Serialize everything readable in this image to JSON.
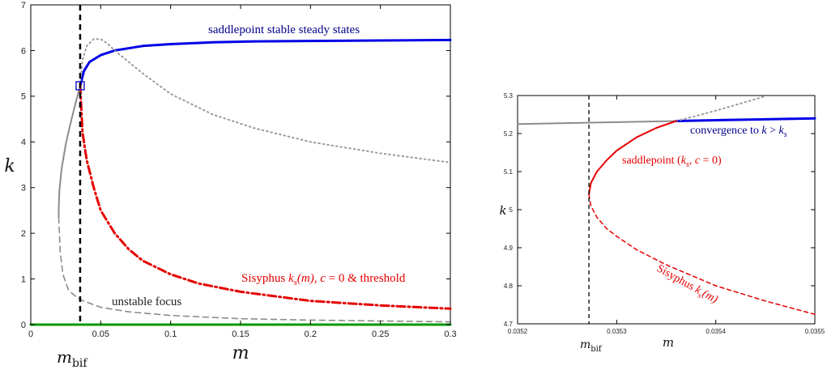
{
  "chart_data": [
    {
      "type": "line",
      "xlabel": "m",
      "ylabel": "k",
      "xlim": [
        0,
        0.3
      ],
      "ylim": [
        0,
        7
      ],
      "x_ticks": [
        "0",
        "0.05",
        "0.1",
        "0.15",
        "0.2",
        "0.25",
        "0.3"
      ],
      "y_ticks": [
        "0",
        "1",
        "2",
        "3",
        "4",
        "5",
        "6",
        "7"
      ],
      "marker_label": "m_bif",
      "marker_base": "m",
      "marker_sub": "bif",
      "m_bif": 0.0353,
      "annotations": {
        "stable": "saddlepoint stable steady states",
        "sisyphus_prefix": "Sisyphus ",
        "sisyphus_k": "k",
        "sisyphus_s": "s",
        "sisyphus_m": "(m), ",
        "sisyphus_c": "c",
        "sisyphus_suffix": " = 0 & threshold",
        "unstable": "unstable focus"
      },
      "colors": {
        "stable": "#0000e6",
        "sisyphus": "#e60000",
        "gray": "#8c8c8c",
        "zero": "#009900"
      },
      "series": [
        {
          "style": "solid-blue",
          "x": [
            0.0353,
            0.038,
            0.042,
            0.05,
            0.06,
            0.08,
            0.1,
            0.13,
            0.16,
            0.2,
            0.25,
            0.3
          ],
          "y": [
            5.23,
            5.55,
            5.75,
            5.9,
            6.0,
            6.1,
            6.14,
            6.18,
            6.2,
            6.21,
            6.22,
            6.23
          ]
        },
        {
          "style": "dashdot-red",
          "x": [
            0.0353,
            0.037,
            0.04,
            0.045,
            0.05,
            0.06,
            0.07,
            0.08,
            0.1,
            0.12,
            0.15,
            0.2,
            0.25,
            0.3
          ],
          "y": [
            5.23,
            4.2,
            3.6,
            3.0,
            2.5,
            2.0,
            1.65,
            1.4,
            1.1,
            0.9,
            0.72,
            0.52,
            0.42,
            0.35
          ]
        },
        {
          "style": "dotted-gray",
          "x": [
            0.0353,
            0.037,
            0.04,
            0.045,
            0.05,
            0.055,
            0.06,
            0.07,
            0.08,
            0.1,
            0.13,
            0.16,
            0.2,
            0.25,
            0.3
          ],
          "y": [
            5.23,
            5.8,
            6.1,
            6.25,
            6.25,
            6.15,
            6.0,
            5.75,
            5.5,
            5.05,
            4.6,
            4.3,
            4.0,
            3.75,
            3.55
          ]
        },
        {
          "style": "solid-gray",
          "x": [
            0.0353,
            0.032,
            0.028,
            0.025,
            0.022,
            0.0205,
            0.02,
            0.02
          ],
          "y": [
            5.23,
            4.85,
            4.35,
            3.95,
            3.4,
            2.95,
            2.55,
            2.35
          ]
        },
        {
          "style": "dashed-gray",
          "x": [
            0.02,
            0.021,
            0.023,
            0.027,
            0.035,
            0.05,
            0.07,
            0.1,
            0.15,
            0.2,
            0.25,
            0.3
          ],
          "y": [
            2.35,
            1.6,
            1.1,
            0.75,
            0.55,
            0.38,
            0.28,
            0.2,
            0.13,
            0.1,
            0.08,
            0.06
          ]
        },
        {
          "style": "solid-green",
          "x": [
            0.0,
            0.3
          ],
          "y": [
            0.0,
            0.0
          ]
        }
      ]
    },
    {
      "type": "line",
      "xlabel": "m",
      "ylabel": "k",
      "xlim": [
        0.0352,
        0.0355
      ],
      "ylim": [
        4.7,
        5.3
      ],
      "x_ticks": [
        "0.0352",
        "0.0353",
        "0.0354",
        "0.0355"
      ],
      "y_ticks": [
        "4.7",
        "4.8",
        "4.9",
        "5",
        "5.1",
        "5.2",
        "5.3"
      ],
      "marker_label": "m_bif",
      "marker_base": "m",
      "marker_sub": "bif",
      "m_bif": 0.035272,
      "annotations": {
        "convergence_prefix": "convergence to ",
        "convergence_k": "k",
        "convergence_gt": " > ",
        "convergence_ks": "k",
        "convergence_s": "s",
        "saddle_prefix": "saddlepoint (",
        "saddle_k": "k",
        "saddle_s": "s",
        "saddle_comma": ", ",
        "saddle_c": "c",
        "saddle_suffix": " = 0)",
        "sisyphus_prefix": "Sisyphus ",
        "sisyphus_k": "k",
        "sisyphus_s": "s",
        "sisyphus_m": "(m)"
      },
      "colors": {
        "blue": "#0000e6",
        "red": "#e60000",
        "gray": "#8c8c8c"
      },
      "series": [
        {
          "style": "solid-gray",
          "x": [
            0.0352,
            0.0353,
            0.03536
          ],
          "y": [
            5.225,
            5.23,
            5.233
          ]
        },
        {
          "style": "solid-blue",
          "x": [
            0.03536,
            0.0354,
            0.0355
          ],
          "y": [
            5.233,
            5.235,
            5.24
          ]
        },
        {
          "style": "dotted-gray",
          "x": [
            0.03536,
            0.03539,
            0.03542,
            0.03545
          ],
          "y": [
            5.233,
            5.253,
            5.275,
            5.298
          ]
        },
        {
          "style": "solid-red",
          "x": [
            0.035272,
            0.035274,
            0.03528,
            0.03529,
            0.0353,
            0.03532,
            0.03534,
            0.03536
          ],
          "y": [
            5.04,
            5.07,
            5.1,
            5.13,
            5.155,
            5.19,
            5.215,
            5.233
          ]
        },
        {
          "style": "dashed-red",
          "x": [
            0.035272,
            0.035274,
            0.03528,
            0.03529,
            0.0353,
            0.03532,
            0.03535,
            0.0354,
            0.03545,
            0.0355
          ],
          "y": [
            5.04,
            5.01,
            4.98,
            4.95,
            4.93,
            4.895,
            4.855,
            4.8,
            4.76,
            4.725
          ]
        }
      ]
    }
  ]
}
